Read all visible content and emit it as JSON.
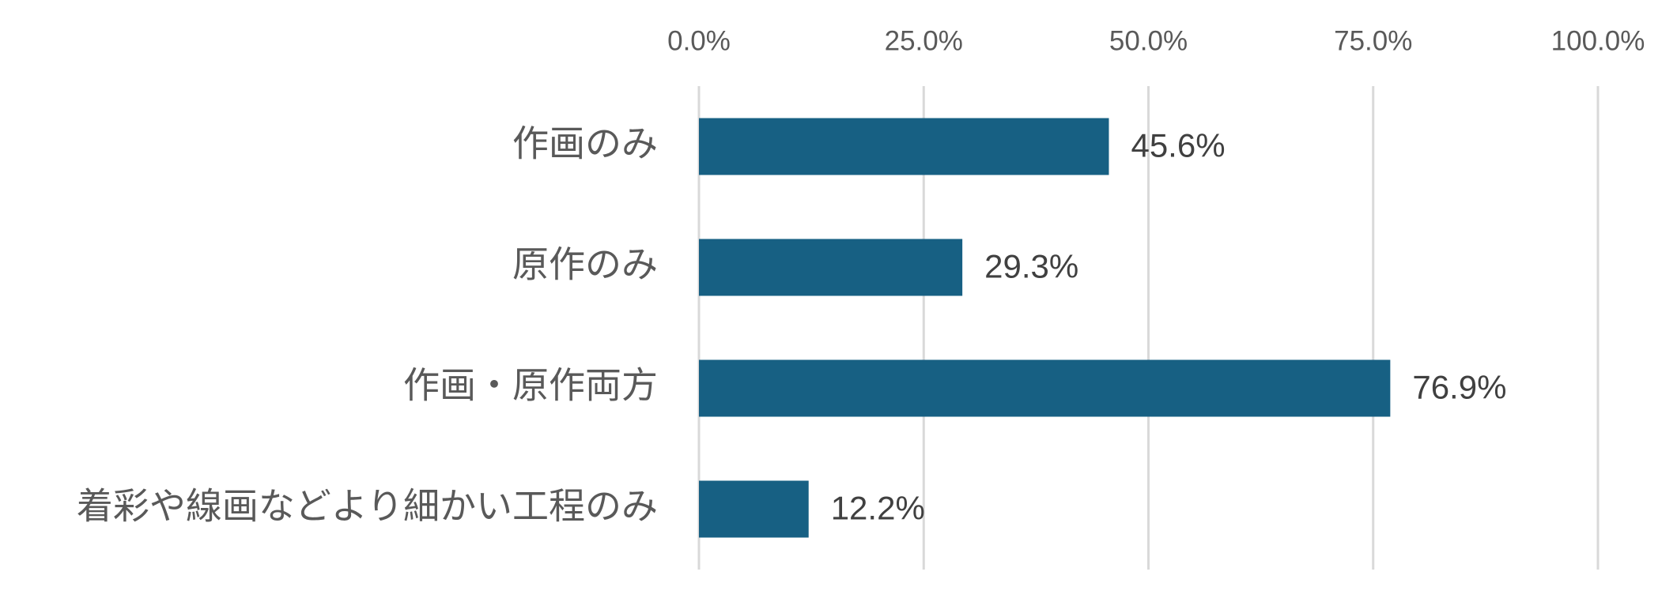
{
  "chart_data": {
    "type": "hbar",
    "categories": [
      "作画のみ",
      "原作のみ",
      "作画・原作両方",
      "着彩や線画などより細かい工程のみ"
    ],
    "values": [
      45.6,
      29.3,
      76.9,
      12.2
    ],
    "value_labels": [
      "45.6%",
      "29.3%",
      "76.9%",
      "12.2%"
    ],
    "color": "#176083",
    "xlim": [
      0,
      100
    ],
    "xticks": [
      {
        "value": 0,
        "label": "0.0%"
      },
      {
        "value": 25,
        "label": "25.0%"
      },
      {
        "value": 50,
        "label": "50.0%"
      },
      {
        "value": 75,
        "label": "75.0%"
      },
      {
        "value": 100,
        "label": "100.0%"
      }
    ],
    "grid": true
  }
}
